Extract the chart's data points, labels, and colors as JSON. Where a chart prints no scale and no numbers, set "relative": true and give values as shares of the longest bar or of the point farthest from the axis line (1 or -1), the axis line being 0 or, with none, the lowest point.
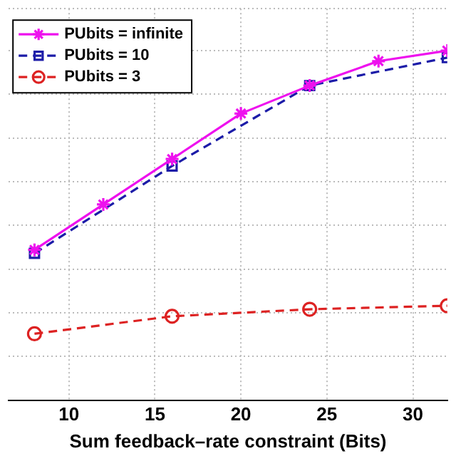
{
  "chart_data": {
    "type": "line",
    "relative": true,
    "xlabel": "Sum feedback–rate constraint (Bits)",
    "xlim": [
      6.5,
      32
    ],
    "xticks": [
      10,
      15,
      20,
      25,
      30
    ],
    "tick_labels": "x",
    "grid": true,
    "legend": "top left",
    "series": [
      {
        "name": "PUbits = infinite",
        "color": "#ee11ee",
        "marker": "cross",
        "line_style": "solid",
        "x": [
          8,
          12,
          16,
          20,
          24,
          28,
          32
        ],
        "values": [
          0.43,
          0.56,
          0.69,
          0.82,
          0.9,
          0.97,
          1
        ]
      },
      {
        "name": "PUbits = 10",
        "color": "#1c1ca8",
        "marker": "square",
        "line_style": "dashed",
        "x": [
          8,
          16,
          24,
          32
        ],
        "values": [
          0.42,
          0.67,
          0.9,
          0.98
        ]
      },
      {
        "name": "PUbits = 3",
        "color": "#dd2222",
        "marker": "circle",
        "line_style": "dashed",
        "x": [
          8,
          16,
          24,
          32
        ],
        "values": [
          0.19,
          0.24,
          0.26,
          0.27
        ]
      }
    ]
  }
}
